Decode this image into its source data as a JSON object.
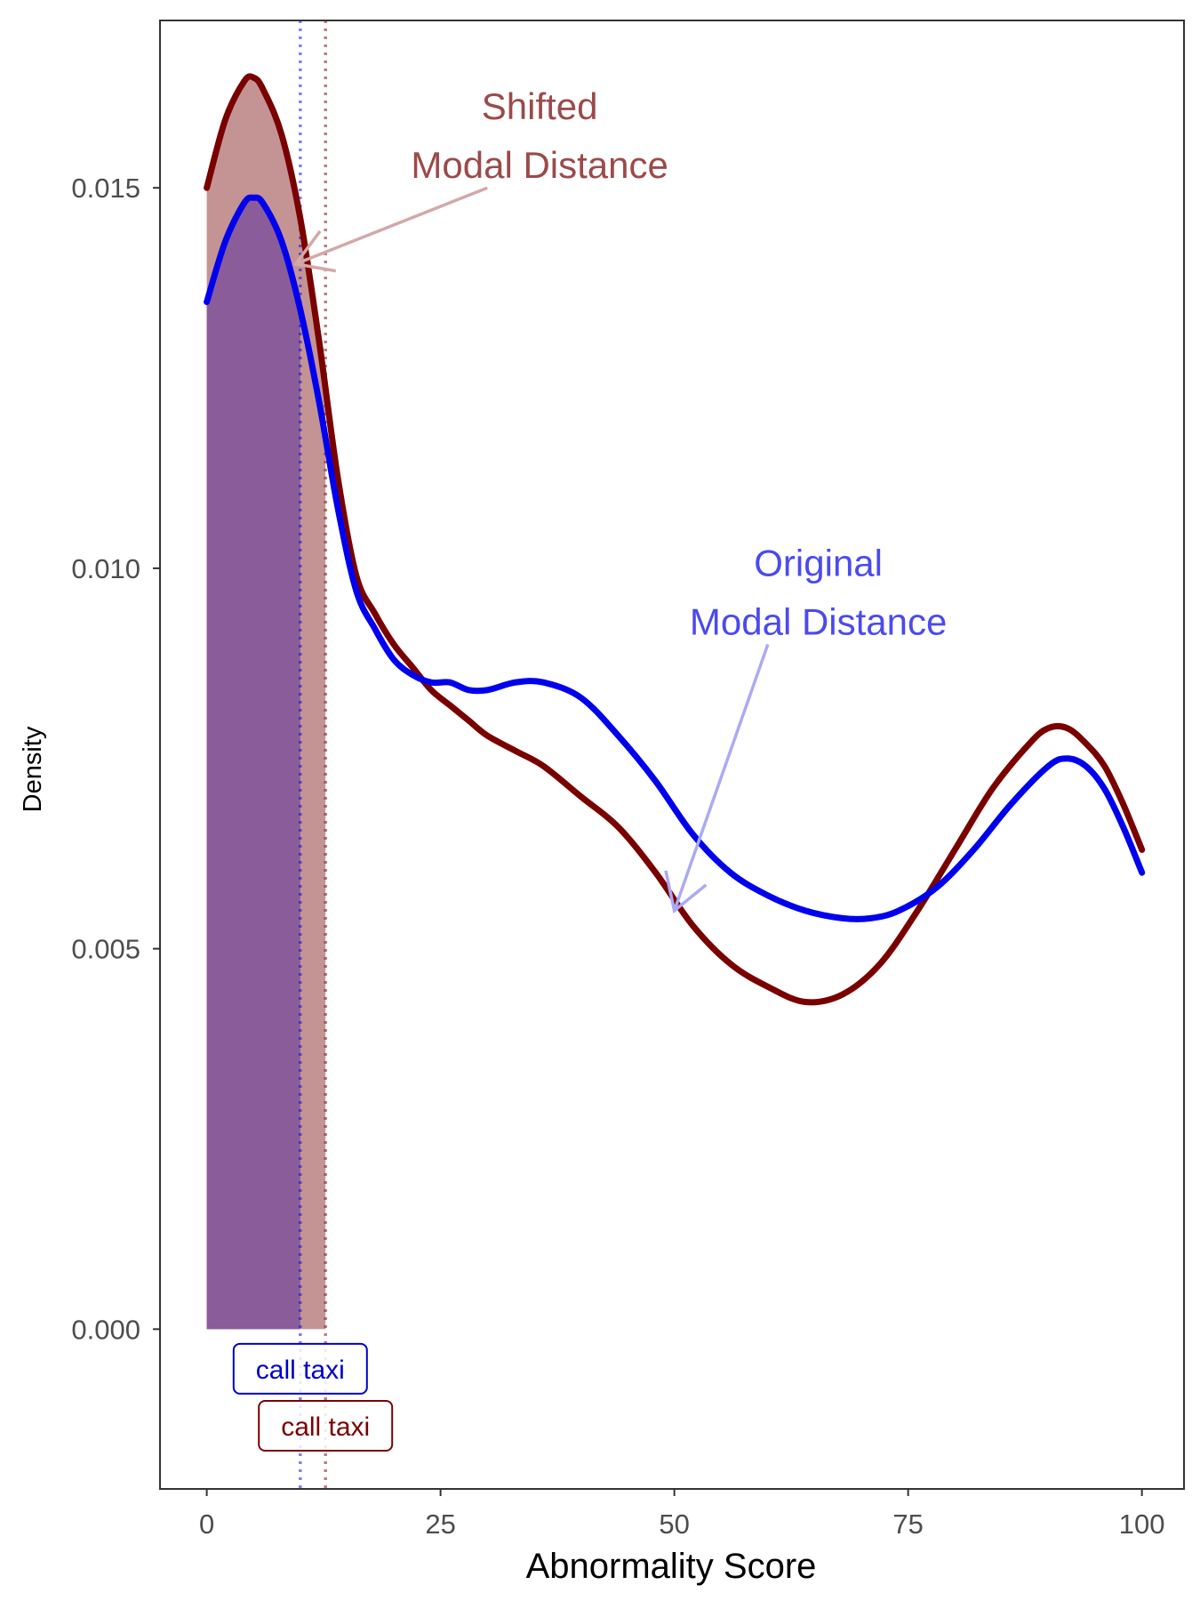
{
  "chart_data": {
    "type": "area",
    "xlabel": "Abnormality Score",
    "ylabel": "Density",
    "xlim": [
      -5,
      104.5
    ],
    "ylim": [
      -0.0021,
      0.0172
    ],
    "x_ticks": [
      0,
      25,
      50,
      75,
      100
    ],
    "x_tick_labels": [
      "0",
      "25",
      "50",
      "75",
      "100"
    ],
    "y_ticks": [
      0.0,
      0.005,
      0.01,
      0.015
    ],
    "y_tick_labels": [
      "0.000",
      "0.005",
      "0.010",
      "0.015"
    ],
    "grid": false,
    "legend": "none",
    "series": [
      {
        "color": "#7a0000",
        "fill_color": "#c49494",
        "fill_to_x": 12.7,
        "modal_line_x": 12.7,
        "points": [
          [
            0,
            0.015
          ],
          [
            2,
            0.0159
          ],
          [
            4,
            0.0164
          ],
          [
            5,
            0.01645
          ],
          [
            6,
            0.0163
          ],
          [
            8,
            0.0157
          ],
          [
            10,
            0.0146
          ],
          [
            12,
            0.013
          ],
          [
            14,
            0.0112
          ],
          [
            16,
            0.0099
          ],
          [
            18,
            0.0094
          ],
          [
            20,
            0.009
          ],
          [
            22,
            0.0087
          ],
          [
            24,
            0.0084
          ],
          [
            26,
            0.0082
          ],
          [
            28,
            0.008
          ],
          [
            30,
            0.0078
          ],
          [
            33,
            0.0076
          ],
          [
            36,
            0.0074
          ],
          [
            40,
            0.007
          ],
          [
            44,
            0.0066
          ],
          [
            48,
            0.006
          ],
          [
            52,
            0.0053
          ],
          [
            56,
            0.0048
          ],
          [
            60,
            0.0045
          ],
          [
            64,
            0.0043
          ],
          [
            68,
            0.0044
          ],
          [
            72,
            0.0048
          ],
          [
            76,
            0.0055
          ],
          [
            80,
            0.0063
          ],
          [
            84,
            0.0071
          ],
          [
            88,
            0.0077
          ],
          [
            90,
            0.0079
          ],
          [
            92,
            0.0079
          ],
          [
            94,
            0.0077
          ],
          [
            96,
            0.0074
          ],
          [
            98,
            0.0069
          ],
          [
            100,
            0.0063
          ]
        ]
      },
      {
        "color": "#0000ee",
        "fill_color": "#8a5c9a",
        "fill_to_x": 10.0,
        "modal_line_x": 10.0,
        "points": [
          [
            0,
            0.0135
          ],
          [
            2,
            0.0143
          ],
          [
            4,
            0.0148
          ],
          [
            5,
            0.01487
          ],
          [
            6,
            0.0148
          ],
          [
            8,
            0.0143
          ],
          [
            10,
            0.0134
          ],
          [
            12,
            0.0122
          ],
          [
            14,
            0.0108
          ],
          [
            16,
            0.0097
          ],
          [
            18,
            0.0092
          ],
          [
            20,
            0.0088
          ],
          [
            22,
            0.0086
          ],
          [
            24,
            0.0085
          ],
          [
            26,
            0.0085
          ],
          [
            28,
            0.0084
          ],
          [
            30,
            0.0084
          ],
          [
            33,
            0.0085
          ],
          [
            36,
            0.0085
          ],
          [
            40,
            0.0083
          ],
          [
            44,
            0.0078
          ],
          [
            48,
            0.0072
          ],
          [
            52,
            0.0065
          ],
          [
            56,
            0.006
          ],
          [
            60,
            0.0057
          ],
          [
            64,
            0.0055
          ],
          [
            68,
            0.0054
          ],
          [
            71,
            0.0054
          ],
          [
            74,
            0.0055
          ],
          [
            78,
            0.0058
          ],
          [
            82,
            0.0063
          ],
          [
            86,
            0.0069
          ],
          [
            90,
            0.0074
          ],
          [
            92,
            0.0075
          ],
          [
            94,
            0.0074
          ],
          [
            96,
            0.0071
          ],
          [
            98,
            0.0066
          ],
          [
            100,
            0.006
          ]
        ]
      }
    ],
    "annotations": [
      {
        "lines": [
          "Shifted",
          "Modal Distance"
        ],
        "color": "#9b4a4a",
        "text_x": 35.6,
        "text_y": 0.0159,
        "arrow_from": [
          30,
          0.015
        ],
        "arrow_to": [
          9.5,
          0.014
        ],
        "arrow_color": "#d4a8a8"
      },
      {
        "lines": [
          "Original",
          "Modal Distance"
        ],
        "color": "#4a4af0",
        "text_x": 65.4,
        "text_y": 0.0099,
        "arrow_from": [
          60,
          0.009
        ],
        "arrow_to": [
          50,
          0.0055
        ],
        "arrow_color": "#aaaaf5"
      }
    ],
    "modal_labels": [
      {
        "text": "call taxi",
        "x": 10.0,
        "y": -0.00052,
        "color": "#0000cc"
      },
      {
        "text": "call taxi",
        "x": 12.7,
        "y": -0.00127,
        "color": "#7a0000"
      }
    ]
  }
}
